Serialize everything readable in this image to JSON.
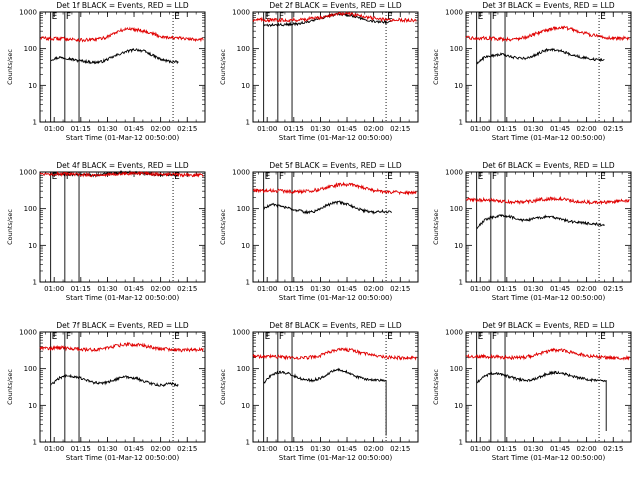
{
  "colors": {
    "events": "#000000",
    "lld": "#e00000",
    "axis": "#000000"
  },
  "chart_data": [
    {
      "type": "line",
      "title": "Det 1f BLACK = Events, RED = LLD",
      "xlabel": "Start Time (01-Mar-12 00:50:00)",
      "ylabel": "Counts/sec",
      "x_range": [
        "00:52",
        "02:25"
      ],
      "x_ticks": [
        "01:00",
        "01:15",
        "01:30",
        "01:45",
        "02:00",
        "02:15"
      ],
      "ylim": [
        1,
        1000
      ],
      "y_scale": "log",
      "y_ticks": [
        "1",
        "10",
        "100",
        "1000"
      ],
      "markers": [
        {
          "label": "E",
          "time": "00:58",
          "style": "solid"
        },
        {
          "label": "F",
          "time": "01:06",
          "style": "solid"
        },
        {
          "label": "E",
          "time": "02:07",
          "style": "dotted"
        }
      ],
      "extra_lines": [
        {
          "time": "01:14",
          "style": "solid"
        }
      ],
      "series": [
        {
          "key": "events",
          "start": "00:58",
          "end": "02:10",
          "approx_values": [
            50,
            58,
            55,
            48,
            45,
            42,
            44,
            55,
            70,
            85,
            95,
            85,
            65,
            50,
            45,
            42
          ],
          "end_drop": null
        },
        {
          "key": "lld",
          "start": "00:52",
          "end": "02:24",
          "approx_values": [
            200,
            185,
            190,
            180,
            170,
            175,
            200,
            280,
            350,
            330,
            280,
            220,
            200,
            190,
            180,
            185
          ]
        }
      ]
    },
    {
      "type": "line",
      "title": "Det 2f BLACK = Events, RED = LLD",
      "xlabel": "Start Time (01-Mar-12 00:50:00)",
      "ylabel": "Counts/sec",
      "x_range": [
        "00:52",
        "02:25"
      ],
      "x_ticks": [
        "01:00",
        "01:15",
        "01:30",
        "01:45",
        "02:00",
        "02:15"
      ],
      "ylim": [
        1,
        1000
      ],
      "y_scale": "log",
      "y_ticks": [
        "1",
        "10",
        "100",
        "1000"
      ],
      "markers": [
        {
          "label": "E",
          "time": "00:58",
          "style": "solid"
        },
        {
          "label": "F",
          "time": "01:06",
          "style": "solid"
        },
        {
          "label": "E",
          "time": "02:07",
          "style": "dotted"
        }
      ],
      "extra_lines": [
        {
          "time": "01:14",
          "style": "solid"
        }
      ],
      "series": [
        {
          "key": "events",
          "start": "00:58",
          "end": "02:10",
          "approx_values": [
            420,
            440,
            450,
            460,
            480,
            520,
            600,
            700,
            820,
            880,
            830,
            720,
            620,
            560,
            540,
            530
          ],
          "end_drop": null
        },
        {
          "key": "lld",
          "start": "00:52",
          "end": "02:24",
          "approx_values": [
            620,
            610,
            600,
            600,
            610,
            640,
            700,
            800,
            900,
            880,
            780,
            680,
            620,
            610,
            600,
            600
          ]
        }
      ]
    },
    {
      "type": "line",
      "title": "Det 3f BLACK = Events, RED = LLD",
      "xlabel": "Start Time (01-Mar-12 00:50:00)",
      "ylabel": "Counts/sec",
      "x_range": [
        "00:52",
        "02:25"
      ],
      "x_ticks": [
        "01:00",
        "01:15",
        "01:30",
        "01:45",
        "02:00",
        "02:15"
      ],
      "ylim": [
        1,
        1000
      ],
      "y_scale": "log",
      "y_ticks": [
        "1",
        "10",
        "100",
        "1000"
      ],
      "markers": [
        {
          "label": "E",
          "time": "00:58",
          "style": "solid"
        },
        {
          "label": "F",
          "time": "01:06",
          "style": "solid"
        },
        {
          "label": "E",
          "time": "02:07",
          "style": "dotted"
        }
      ],
      "extra_lines": [
        {
          "time": "01:14",
          "style": "solid"
        }
      ],
      "series": [
        {
          "key": "events",
          "start": "00:58",
          "end": "02:10",
          "approx_values": [
            40,
            60,
            65,
            70,
            60,
            55,
            55,
            70,
            90,
            95,
            85,
            70,
            60,
            55,
            50,
            48
          ],
          "end_drop": null
        },
        {
          "key": "lld",
          "start": "00:52",
          "end": "02:24",
          "approx_values": [
            200,
            190,
            195,
            185,
            180,
            190,
            230,
            300,
            360,
            380,
            320,
            260,
            220,
            200,
            190,
            195
          ]
        }
      ]
    },
    {
      "type": "line",
      "title": "Det 4f BLACK = Events, RED = LLD",
      "xlabel": "Start Time (01-Mar-12 00:50:00)",
      "ylabel": "Counts/sec",
      "x_range": [
        "00:52",
        "02:25"
      ],
      "x_ticks": [
        "01:00",
        "01:15",
        "01:30",
        "01:45",
        "02:00",
        "02:15"
      ],
      "ylim": [
        1,
        1000
      ],
      "y_scale": "log",
      "y_ticks": [
        "1",
        "10",
        "100",
        "1000"
      ],
      "markers": [
        {
          "label": "E",
          "time": "00:58",
          "style": "solid"
        },
        {
          "label": "F",
          "time": "01:06",
          "style": "solid"
        },
        {
          "label": "E",
          "time": "02:07",
          "style": "dotted"
        }
      ],
      "extra_lines": [
        {
          "time": "01:14",
          "style": "solid"
        }
      ],
      "series": [
        {
          "key": "events",
          "start": "00:58",
          "end": "02:10",
          "approx_values": [
            880,
            870,
            860,
            850,
            830,
            820,
            850,
            900,
            960,
            980,
            950,
            900,
            860,
            840,
            830,
            820
          ],
          "end_drop": null
        },
        {
          "key": "lld",
          "start": "00:52",
          "end": "02:24",
          "approx_values": [
            900,
            890,
            880,
            860,
            840,
            830,
            840,
            870,
            900,
            910,
            890,
            860,
            840,
            830,
            820,
            820
          ]
        }
      ]
    },
    {
      "type": "line",
      "title": "Det 5f BLACK = Events, RED = LLD",
      "xlabel": "Start Time (01-Mar-12 00:50:00)",
      "ylabel": "Counts/sec",
      "x_range": [
        "00:52",
        "02:25"
      ],
      "x_ticks": [
        "01:00",
        "01:15",
        "01:30",
        "01:45",
        "02:00",
        "02:15"
      ],
      "ylim": [
        1,
        1000
      ],
      "y_scale": "log",
      "y_ticks": [
        "1",
        "10",
        "100",
        "1000"
      ],
      "markers": [
        {
          "label": "E",
          "time": "00:58",
          "style": "solid"
        },
        {
          "label": "F",
          "time": "01:06",
          "style": "solid"
        },
        {
          "label": "E",
          "time": "02:07",
          "style": "dotted"
        }
      ],
      "extra_lines": [
        {
          "time": "01:14",
          "style": "solid"
        }
      ],
      "series": [
        {
          "key": "events",
          "start": "00:58",
          "end": "02:10",
          "approx_values": [
            100,
            130,
            120,
            100,
            90,
            80,
            85,
            110,
            140,
            150,
            130,
            100,
            85,
            80,
            85,
            80
          ],
          "end_drop": null
        },
        {
          "key": "lld",
          "start": "00:52",
          "end": "02:24",
          "approx_values": [
            320,
            300,
            310,
            300,
            290,
            300,
            330,
            400,
            460,
            450,
            380,
            320,
            290,
            280,
            270,
            270
          ]
        }
      ]
    },
    {
      "type": "line",
      "title": "Det 6f BLACK = Events, RED = LLD",
      "xlabel": "Start Time (01-Mar-12 00:50:00)",
      "ylabel": "Counts/sec",
      "x_range": [
        "00:52",
        "02:25"
      ],
      "x_ticks": [
        "01:00",
        "01:15",
        "01:30",
        "01:45",
        "02:00",
        "02:15"
      ],
      "ylim": [
        1,
        1000
      ],
      "y_scale": "log",
      "y_ticks": [
        "1",
        "10",
        "100",
        "1000"
      ],
      "markers": [
        {
          "label": "E",
          "time": "00:58",
          "style": "solid"
        },
        {
          "label": "F",
          "time": "01:06",
          "style": "solid"
        },
        {
          "label": "E",
          "time": "02:07",
          "style": "dotted"
        }
      ],
      "extra_lines": [
        {
          "time": "01:14",
          "style": "solid"
        }
      ],
      "series": [
        {
          "key": "events",
          "start": "00:58",
          "end": "02:10",
          "approx_values": [
            30,
            50,
            60,
            65,
            60,
            50,
            48,
            55,
            60,
            58,
            50,
            45,
            42,
            40,
            38,
            35
          ],
          "end_drop": null
        },
        {
          "key": "lld",
          "start": "00:52",
          "end": "02:24",
          "approx_values": [
            180,
            170,
            175,
            160,
            150,
            150,
            160,
            180,
            190,
            180,
            160,
            150,
            145,
            150,
            160,
            165
          ]
        }
      ]
    },
    {
      "type": "line",
      "title": "Det 7f BLACK = Events, RED = LLD",
      "xlabel": "Start Time (01-Mar-12 00:50:00)",
      "ylabel": "Counts/sec",
      "x_range": [
        "00:52",
        "02:25"
      ],
      "x_ticks": [
        "01:00",
        "01:15",
        "01:30",
        "01:45",
        "02:00",
        "02:15"
      ],
      "ylim": [
        1,
        1000
      ],
      "y_scale": "log",
      "y_ticks": [
        "1",
        "10",
        "100",
        "1000"
      ],
      "markers": [
        {
          "label": "E",
          "time": "00:58",
          "style": "solid"
        },
        {
          "label": "F",
          "time": "01:06",
          "style": "solid"
        },
        {
          "label": "E",
          "time": "02:07",
          "style": "dotted"
        }
      ],
      "extra_lines": [
        {
          "time": "01:14",
          "style": "solid"
        }
      ],
      "series": [
        {
          "key": "events",
          "start": "00:58",
          "end": "02:10",
          "approx_values": [
            35,
            55,
            65,
            60,
            50,
            42,
            40,
            45,
            55,
            60,
            55,
            45,
            38,
            35,
            40,
            35
          ],
          "end_drop": null
        },
        {
          "key": "lld",
          "start": "00:52",
          "end": "02:24",
          "approx_values": [
            380,
            360,
            370,
            350,
            330,
            330,
            360,
            420,
            460,
            450,
            400,
            350,
            330,
            320,
            330,
            330
          ]
        }
      ]
    },
    {
      "type": "line",
      "title": "Det 8f BLACK = Events, RED = LLD",
      "xlabel": "Start Time (01-Mar-12 00:50:00)",
      "ylabel": "Counts/sec",
      "x_range": [
        "00:52",
        "02:25"
      ],
      "x_ticks": [
        "01:00",
        "01:15",
        "01:30",
        "01:45",
        "02:00",
        "02:15"
      ],
      "ylim": [
        1,
        1000
      ],
      "y_scale": "log",
      "y_ticks": [
        "1",
        "10",
        "100",
        "1000"
      ],
      "markers": [
        {
          "label": "E",
          "time": "00:58",
          "style": "solid"
        },
        {
          "label": "F",
          "time": "01:06",
          "style": "solid"
        },
        {
          "label": "E",
          "time": "02:07",
          "style": "dotted"
        }
      ],
      "extra_lines": [
        {
          "time": "01:14",
          "style": "solid"
        }
      ],
      "series": [
        {
          "key": "events",
          "start": "00:58",
          "end": "02:07",
          "approx_values": [
            40,
            70,
            80,
            75,
            60,
            50,
            48,
            55,
            75,
            95,
            85,
            65,
            55,
            50,
            48,
            45
          ],
          "end_drop": 1.5
        },
        {
          "key": "lld",
          "start": "00:52",
          "end": "02:24",
          "approx_values": [
            220,
            210,
            215,
            205,
            200,
            200,
            220,
            280,
            330,
            320,
            270,
            230,
            210,
            200,
            195,
            195
          ]
        }
      ]
    },
    {
      "type": "line",
      "title": "Det 9f BLACK = Events, RED = LLD",
      "xlabel": "Start Time (01-Mar-12 00:50:00)",
      "ylabel": "Counts/sec",
      "x_range": [
        "00:52",
        "02:25"
      ],
      "x_ticks": [
        "01:00",
        "01:15",
        "01:30",
        "01:45",
        "02:00",
        "02:15"
      ],
      "ylim": [
        1,
        1000
      ],
      "y_scale": "log",
      "y_ticks": [
        "1",
        "10",
        "100",
        "1000"
      ],
      "markers": [
        {
          "label": "E",
          "time": "00:58",
          "style": "solid"
        },
        {
          "label": "F",
          "time": "01:06",
          "style": "solid"
        },
        {
          "label": "E",
          "time": "02:07",
          "style": "dotted"
        }
      ],
      "extra_lines": [
        {
          "time": "01:14",
          "style": "solid"
        }
      ],
      "series": [
        {
          "key": "events",
          "start": "00:58",
          "end": "02:11",
          "approx_values": [
            40,
            65,
            75,
            70,
            58,
            50,
            48,
            55,
            70,
            80,
            75,
            62,
            55,
            50,
            48,
            44
          ],
          "end_drop": 2
        },
        {
          "key": "lld",
          "start": "00:52",
          "end": "02:24",
          "approx_values": [
            220,
            210,
            215,
            205,
            200,
            200,
            220,
            270,
            320,
            310,
            260,
            230,
            210,
            200,
            195,
            200
          ]
        }
      ]
    }
  ]
}
